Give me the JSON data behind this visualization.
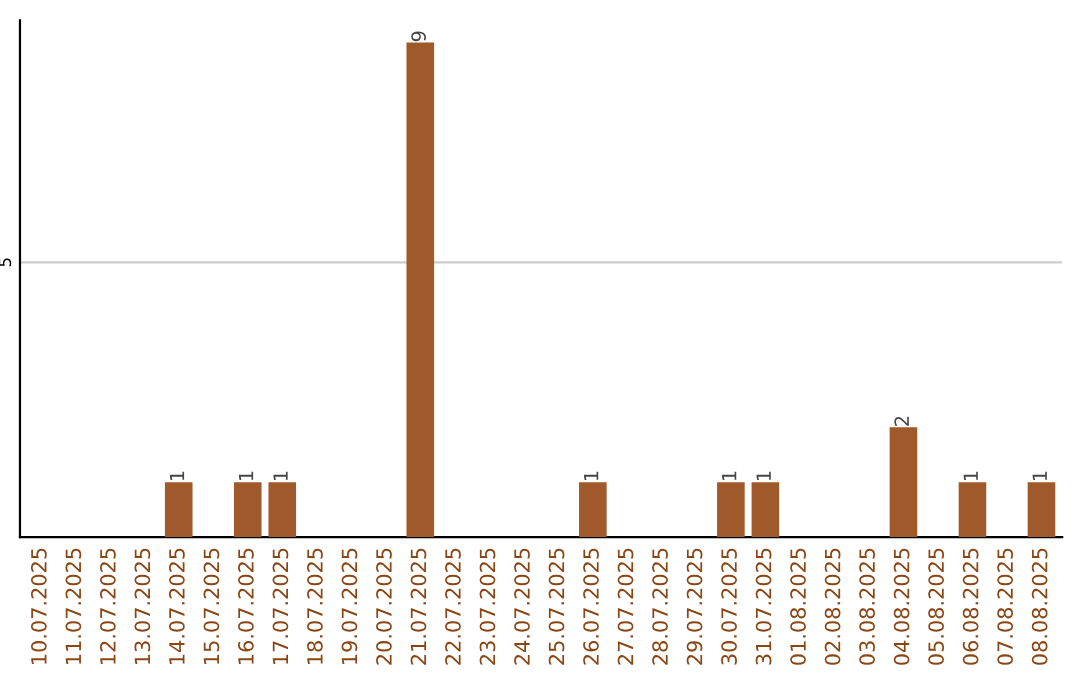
{
  "chart_data": {
    "type": "bar",
    "categories": [
      "10.07.2025",
      "11.07.2025",
      "12.07.2025",
      "13.07.2025",
      "14.07.2025",
      "15.07.2025",
      "16.07.2025",
      "17.07.2025",
      "18.07.2025",
      "19.07.2025",
      "20.07.2025",
      "21.07.2025",
      "22.07.2025",
      "23.07.2025",
      "24.07.2025",
      "25.07.2025",
      "26.07.2025",
      "27.07.2025",
      "28.07.2025",
      "29.07.2025",
      "30.07.2025",
      "31.07.2025",
      "01.08.2025",
      "02.08.2025",
      "03.08.2025",
      "04.08.2025",
      "05.08.2025",
      "06.08.2025",
      "07.08.2025",
      "08.08.2025"
    ],
    "values": [
      0,
      0,
      0,
      0,
      1,
      0,
      1,
      1,
      0,
      0,
      0,
      9,
      0,
      0,
      0,
      0,
      1,
      0,
      0,
      0,
      1,
      1,
      0,
      0,
      0,
      2,
      0,
      1,
      0,
      1
    ],
    "value_labels": [
      null,
      null,
      null,
      null,
      "1",
      null,
      "1",
      "1",
      null,
      null,
      null,
      "9",
      null,
      null,
      null,
      null,
      "1",
      null,
      null,
      null,
      "1",
      "1",
      null,
      null,
      null,
      "2",
      null,
      "1",
      null,
      "1"
    ],
    "color": "#a0592a",
    "ylim": [
      0,
      9.4
    ],
    "yticks": [
      5
    ],
    "grid": "y"
  }
}
